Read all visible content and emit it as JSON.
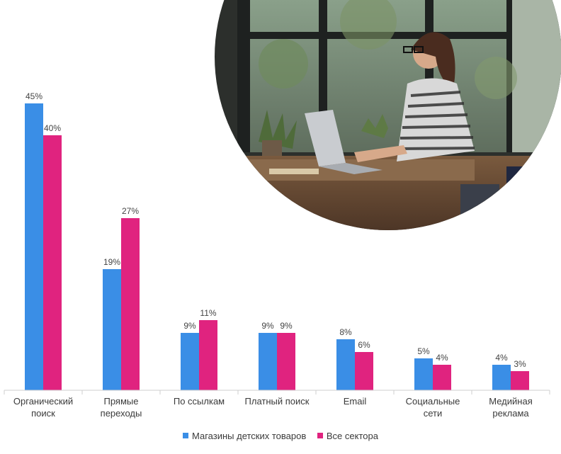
{
  "chart_data": {
    "type": "bar",
    "categories": [
      "Органический\nпоиск",
      "Прямые\nпереходы",
      "По ссылкам",
      "Платный поиск",
      "Email",
      "Социальные\nсети",
      "Медийная\nреклама"
    ],
    "series": [
      {
        "name": "Магазины детских товаров",
        "values": [
          45,
          19,
          9,
          9,
          8,
          5,
          4
        ],
        "labels": [
          "45%",
          "19%",
          "9%",
          "9%",
          "8%",
          "5%",
          "4%"
        ],
        "color": "#3a8ee6"
      },
      {
        "name": "Все сектора",
        "values": [
          40,
          27,
          11,
          9,
          6,
          4,
          3
        ],
        "labels": [
          "40%",
          "27%",
          "11%",
          "9%",
          "6%",
          "4%",
          "3%"
        ],
        "color": "#e0237f"
      }
    ],
    "ylim": [
      0,
      45
    ],
    "legend_position": "bottom"
  },
  "photo": {
    "description_icon": "photo-woman-laptop-cafe"
  }
}
